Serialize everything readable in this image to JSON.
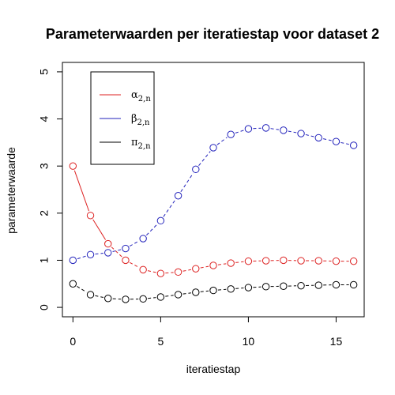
{
  "chart_data": {
    "type": "line",
    "title": "Parameterwaarden per iteratiestap voor dataset 2",
    "xlabel": "iteratiestap",
    "ylabel": "parameterwaarde",
    "xlim": [
      -0.6,
      16.6
    ],
    "ylim": [
      -0.2,
      5.2
    ],
    "x_ticks": [
      0,
      5,
      10,
      15
    ],
    "y_ticks": [
      0,
      1,
      2,
      3,
      4,
      5
    ],
    "grid": false,
    "legend_position": "top-left",
    "x": [
      0,
      1,
      2,
      3,
      4,
      5,
      6,
      7,
      8,
      9,
      10,
      11,
      12,
      13,
      14,
      15,
      16
    ],
    "series": [
      {
        "name": "α",
        "name_sub": "2,n",
        "color": "#dd2222",
        "line_style": "solid-then-dashed",
        "values": [
          3.0,
          1.95,
          1.35,
          1.0,
          0.8,
          0.72,
          0.75,
          0.82,
          0.89,
          0.94,
          0.98,
          0.99,
          1.0,
          0.99,
          0.99,
          0.98,
          0.98
        ]
      },
      {
        "name": "β",
        "name_sub": "2,n",
        "color": "#2222bb",
        "line_style": "dashed",
        "values": [
          1.0,
          1.12,
          1.16,
          1.25,
          1.46,
          1.84,
          2.37,
          2.93,
          3.39,
          3.67,
          3.79,
          3.81,
          3.76,
          3.69,
          3.6,
          3.52,
          3.44
        ]
      },
      {
        "name": "π",
        "name_sub": "2,n",
        "color": "#000000",
        "line_style": "dashed",
        "values": [
          0.5,
          0.27,
          0.19,
          0.17,
          0.18,
          0.22,
          0.27,
          0.32,
          0.36,
          0.39,
          0.42,
          0.44,
          0.45,
          0.46,
          0.47,
          0.48,
          0.48
        ]
      }
    ]
  }
}
